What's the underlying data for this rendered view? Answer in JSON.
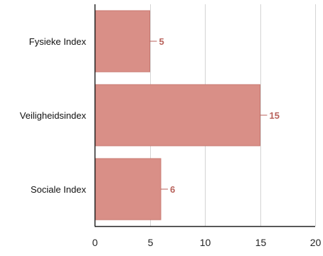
{
  "chart_data": {
    "type": "bar",
    "orientation": "horizontal",
    "categories": [
      "Fysieke Index",
      "Veiligheidsindex",
      "Sociale Index"
    ],
    "values": [
      5,
      15,
      6
    ],
    "data_labels": [
      "5",
      "15",
      "6"
    ],
    "xlim": [
      0,
      20
    ],
    "x_ticks": [
      0,
      5,
      10,
      15,
      20
    ],
    "x_tick_labels": [
      "0",
      "5",
      "10",
      "15",
      "20"
    ],
    "grid": true,
    "title": "",
    "xlabel": "",
    "ylabel": ""
  },
  "colors": {
    "bar_fill": "#d98f87",
    "bar_stroke": "#c97870",
    "data_label": "#b8625b",
    "gridline": "#d4d4d4",
    "axis": "#222222",
    "background": "#ffffff"
  }
}
